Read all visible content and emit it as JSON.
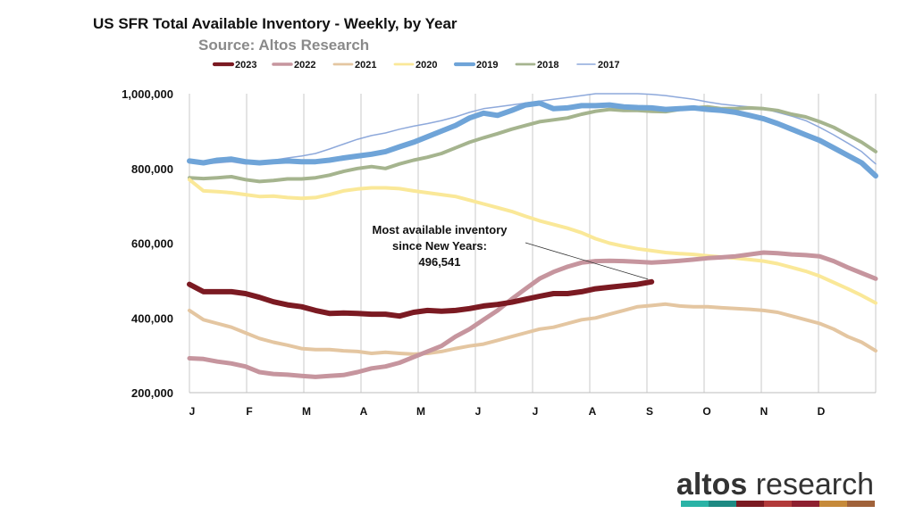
{
  "chart_data": {
    "type": "line",
    "title": "US SFR Total Available Inventory - Weekly, by Year",
    "subtitle": "Source: Altos Research",
    "xlabel": "",
    "ylabel": "",
    "ylim": [
      200000,
      1000000
    ],
    "yticks": [
      200000,
      400000,
      600000,
      800000,
      1000000
    ],
    "ytick_labels": [
      "200,000",
      "400,000",
      "600,000",
      "800,000",
      "1,000,000"
    ],
    "xtick_labels": [
      "J",
      "F",
      "M",
      "A",
      "M",
      "J",
      "J",
      "A",
      "S",
      "O",
      "N",
      "D"
    ],
    "grid": "vertical",
    "legend_position": "top",
    "annotation": {
      "lines": [
        "Most available inventory",
        "since New Years:",
        "496,541"
      ],
      "value": 496541
    },
    "series": [
      {
        "name": "2023",
        "color": "#7b1a22",
        "width": 6,
        "values": [
          490000,
          470000,
          470000,
          470000,
          465000,
          455000,
          443000,
          435000,
          430000,
          420000,
          412000,
          413000,
          412000,
          410000,
          410000,
          405000,
          415000,
          420000,
          418000,
          420000,
          425000,
          432000,
          436000,
          442000,
          450000,
          458000,
          465000,
          465000,
          470000,
          478000,
          482000,
          486000,
          490000,
          496541
        ]
      },
      {
        "name": "2022",
        "color": "#c6959e",
        "width": 5,
        "values": [
          292000,
          290000,
          283000,
          278000,
          270000,
          255000,
          250000,
          248000,
          245000,
          242000,
          245000,
          247000,
          255000,
          265000,
          270000,
          280000,
          295000,
          310000,
          325000,
          350000,
          370000,
          395000,
          420000,
          450000,
          478000,
          505000,
          523000,
          537000,
          548000,
          552000,
          553000,
          552000,
          550000,
          548000,
          550000,
          553000,
          556000,
          560000,
          562000,
          565000,
          570000,
          575000,
          573000,
          570000,
          568000,
          565000,
          552000,
          535000,
          520000,
          505000
        ]
      },
      {
        "name": "2021",
        "color": "#e4c6a1",
        "width": 4,
        "values": [
          420000,
          395000,
          385000,
          375000,
          360000,
          345000,
          335000,
          327000,
          318000,
          315000,
          315000,
          312000,
          310000,
          305000,
          308000,
          305000,
          303000,
          305000,
          310000,
          318000,
          325000,
          330000,
          340000,
          350000,
          360000,
          370000,
          375000,
          385000,
          395000,
          400000,
          410000,
          420000,
          430000,
          433000,
          437000,
          432000,
          430000,
          430000,
          427000,
          425000,
          423000,
          420000,
          415000,
          405000,
          395000,
          385000,
          370000,
          350000,
          335000,
          312000
        ]
      },
      {
        "name": "2020",
        "color": "#fae898",
        "width": 4,
        "values": [
          770000,
          740000,
          738000,
          735000,
          730000,
          725000,
          726000,
          722000,
          720000,
          722000,
          730000,
          740000,
          745000,
          748000,
          748000,
          746000,
          740000,
          735000,
          730000,
          725000,
          715000,
          705000,
          695000,
          685000,
          672000,
          660000,
          650000,
          640000,
          628000,
          612000,
          600000,
          592000,
          585000,
          580000,
          575000,
          572000,
          570000,
          566000,
          563000,
          560000,
          556000,
          552000,
          545000,
          535000,
          525000,
          512000,
          495000,
          478000,
          460000,
          440000
        ]
      },
      {
        "name": "2019",
        "color": "#6fa4d8",
        "width": 6,
        "values": [
          820000,
          815000,
          822000,
          825000,
          818000,
          815000,
          818000,
          820000,
          818000,
          818000,
          822000,
          828000,
          833000,
          838000,
          845000,
          858000,
          870000,
          885000,
          900000,
          915000,
          935000,
          948000,
          942000,
          955000,
          970000,
          975000,
          960000,
          962000,
          968000,
          968000,
          970000,
          965000,
          963000,
          962000,
          958000,
          960000,
          962000,
          958000,
          955000,
          950000,
          942000,
          933000,
          920000,
          905000,
          890000,
          875000,
          855000,
          835000,
          815000,
          780000
        ]
      },
      {
        "name": "2018",
        "color": "#a5b48e",
        "width": 4,
        "values": [
          775000,
          773000,
          775000,
          778000,
          770000,
          765000,
          768000,
          772000,
          772000,
          775000,
          782000,
          792000,
          800000,
          805000,
          800000,
          812000,
          822000,
          830000,
          840000,
          855000,
          870000,
          882000,
          893000,
          905000,
          915000,
          925000,
          930000,
          935000,
          945000,
          953000,
          958000,
          955000,
          955000,
          953000,
          952000,
          958000,
          962000,
          965000,
          960000,
          960000,
          962000,
          960000,
          955000,
          945000,
          938000,
          925000,
          910000,
          890000,
          870000,
          845000
        ]
      },
      {
        "name": "2017",
        "color": "#8ea9db",
        "width": 1.5,
        "values": [
          815000,
          812000,
          815000,
          818000,
          812000,
          815000,
          822000,
          828000,
          833000,
          840000,
          852000,
          865000,
          878000,
          888000,
          895000,
          905000,
          913000,
          920000,
          928000,
          938000,
          950000,
          960000,
          965000,
          970000,
          975000,
          980000,
          985000,
          990000,
          995000,
          1000000,
          1000000,
          1000000,
          1000000,
          998000,
          995000,
          990000,
          985000,
          978000,
          972000,
          968000,
          965000,
          960000,
          950000,
          940000,
          928000,
          910000,
          890000,
          868000,
          845000,
          812000
        ]
      }
    ]
  },
  "brand": {
    "bold": "altos",
    "light": " research"
  },
  "brand_colors": [
    "#2ab3a6",
    "#1e8a83",
    "#7b1a22",
    "#b23a3a",
    "#8e2030",
    "#c68a3a",
    "#a0623a"
  ]
}
